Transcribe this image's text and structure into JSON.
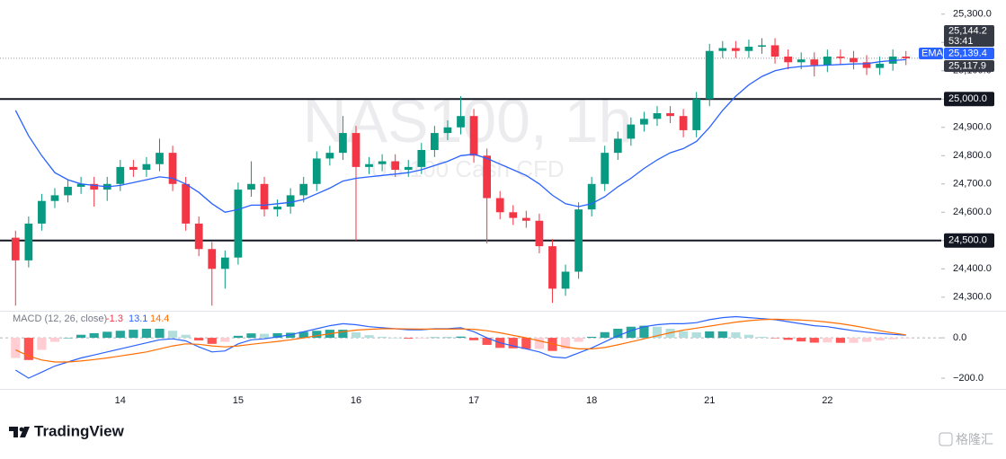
{
  "chart_data": [
    {
      "type": "candlestick",
      "title": "NAS100, 1h",
      "subtitle": "US 100 Cash CFD",
      "categories": [
        null,
        null,
        null,
        null,
        null,
        null,
        null,
        null,
        "14",
        null,
        null,
        null,
        null,
        null,
        null,
        null,
        null,
        "15",
        null,
        null,
        null,
        null,
        null,
        null,
        null,
        null,
        "16",
        null,
        null,
        null,
        null,
        null,
        null,
        null,
        null,
        "17",
        null,
        null,
        null,
        null,
        null,
        null,
        null,
        null,
        "18",
        null,
        null,
        null,
        null,
        null,
        null,
        null,
        null,
        "21",
        null,
        null,
        null,
        null,
        null,
        null,
        null,
        null,
        "22",
        null,
        null,
        null,
        null,
        null,
        null
      ],
      "open": [
        24510,
        24430,
        24560,
        24640,
        24660,
        24690,
        24700,
        24680,
        24700,
        24760,
        24750,
        24770,
        24810,
        24700,
        24560,
        24470,
        24400,
        24440,
        24680,
        24700,
        24610,
        24620,
        24660,
        24700,
        24790,
        24810,
        24880,
        24760,
        24770,
        24780,
        24750,
        24760,
        24820,
        24880,
        24900,
        24940,
        24800,
        24650,
        24600,
        24580,
        24570,
        24480,
        24330,
        24390,
        24610,
        24700,
        24810,
        24860,
        24910,
        24930,
        24950,
        24940,
        24890,
        25000,
        25170,
        25180,
        25170,
        25185,
        25190,
        25150,
        25130,
        25140,
        25120,
        25150,
        25145,
        25130,
        25110,
        25125,
        25150
      ],
      "high": [
        24535,
        24585,
        24665,
        24685,
        24715,
        24725,
        24725,
        24725,
        24785,
        24785,
        24795,
        24860,
        24835,
        24725,
        24585,
        24495,
        24465,
        24705,
        24780,
        24725,
        24645,
        24685,
        24725,
        24815,
        24835,
        24940,
        24905,
        24795,
        24805,
        24805,
        24785,
        24845,
        24905,
        24925,
        25010,
        24965,
        24825,
        24675,
        24625,
        24605,
        24595,
        24505,
        24415,
        24635,
        24725,
        24835,
        24885,
        24935,
        24955,
        24975,
        24975,
        24965,
        25025,
        25195,
        25205,
        25205,
        25210,
        25215,
        25215,
        25175,
        25165,
        25165,
        25175,
        25175,
        25170,
        25155,
        25150,
        25175,
        25170
      ],
      "low": [
        24270,
        24405,
        24535,
        24615,
        24635,
        24665,
        24620,
        24640,
        24675,
        24725,
        24725,
        24745,
        24675,
        24535,
        24445,
        24270,
        24330,
        24415,
        24655,
        24585,
        24585,
        24595,
        24635,
        24675,
        24765,
        24785,
        24500,
        24735,
        24745,
        24725,
        24725,
        24735,
        24795,
        24855,
        24875,
        24775,
        24490,
        24575,
        24555,
        24545,
        24455,
        24280,
        24305,
        24365,
        24585,
        24675,
        24785,
        24835,
        24885,
        24905,
        24915,
        24865,
        24865,
        24975,
        25145,
        25145,
        25145,
        25160,
        25125,
        25105,
        25105,
        25080,
        25095,
        25120,
        25105,
        25085,
        25085,
        25100,
        25120
      ],
      "close": [
        24430,
        24560,
        24640,
        24660,
        24690,
        24700,
        24680,
        24700,
        24760,
        24750,
        24770,
        24810,
        24700,
        24560,
        24470,
        24400,
        24440,
        24680,
        24700,
        24610,
        24620,
        24660,
        24700,
        24790,
        24810,
        24880,
        24760,
        24770,
        24780,
        24750,
        24760,
        24820,
        24880,
        24900,
        24940,
        24800,
        24650,
        24600,
        24580,
        24570,
        24480,
        24330,
        24390,
        24610,
        24700,
        24810,
        24860,
        24910,
        24930,
        24950,
        24940,
        24890,
        25000,
        25170,
        25180,
        25170,
        25185,
        25190,
        25150,
        25130,
        25140,
        25120,
        25150,
        25145,
        25130,
        25110,
        25125,
        25150,
        25144.2
      ],
      "up_color": "#089981",
      "down_color": "#f23645",
      "series": [
        {
          "name": "EMA",
          "color": "#2962ff",
          "values": [
            24960,
            24870,
            24800,
            24740,
            24715,
            24700,
            24695,
            24690,
            24695,
            24705,
            24715,
            24725,
            24720,
            24700,
            24670,
            24630,
            24600,
            24610,
            24625,
            24625,
            24630,
            24635,
            24645,
            24665,
            24685,
            24710,
            24720,
            24725,
            24730,
            24735,
            24740,
            24750,
            24765,
            24780,
            24800,
            24805,
            24790,
            24770,
            24750,
            24730,
            24700,
            24660,
            24630,
            24620,
            24630,
            24655,
            24690,
            24720,
            24755,
            24785,
            24810,
            24825,
            24850,
            24900,
            24960,
            25010,
            25050,
            25080,
            25100,
            25110,
            25115,
            25118,
            25120,
            25122,
            25124,
            25125,
            25132,
            25136,
            25139.4
          ]
        }
      ],
      "ylim": [
        24255,
        25350
      ],
      "yticks": [
        {
          "value": 24300,
          "label": "24,300.0"
        },
        {
          "value": 24400,
          "label": "24,400.0"
        },
        {
          "value": 24500,
          "label": "24,500.0"
        },
        {
          "value": 24600,
          "label": "24,600.0"
        },
        {
          "value": 24700,
          "label": "24,700.0"
        },
        {
          "value": 24800,
          "label": "24,800.0"
        },
        {
          "value": 24900,
          "label": "24,900.0"
        },
        {
          "value": 25000,
          "label": "25,000.0"
        },
        {
          "value": 25100,
          "label": "25,100.0"
        },
        {
          "value": 25200,
          "label": "25,200.0"
        },
        {
          "value": 25300,
          "label": "25,300.0"
        }
      ],
      "hlines": [
        {
          "value": 25000,
          "label": "25,000.0"
        },
        {
          "value": 24500,
          "label": "24,500.0"
        }
      ],
      "price_tags": [
        {
          "value": 25144.2,
          "label": "25,144.2",
          "color": "#363a45"
        },
        {
          "value": 25139.4,
          "label": "25,139.4",
          "color": "#2962ff",
          "name": "EMA"
        },
        {
          "value": 25117.9,
          "label": "25,117.9",
          "color": "#363a45"
        }
      ],
      "countdown": "53:41"
    },
    {
      "type": "macd",
      "title": "MACD (12, 26, close)",
      "series": [
        {
          "name": "MACD",
          "color": "#2962ff",
          "values": [
            -160,
            -200,
            -170,
            -140,
            -120,
            -100,
            -85,
            -70,
            -55,
            -40,
            -25,
            -10,
            -5,
            -15,
            -45,
            -70,
            -65,
            -30,
            -10,
            -5,
            5,
            15,
            30,
            45,
            60,
            70,
            65,
            55,
            50,
            45,
            40,
            40,
            45,
            45,
            50,
            30,
            0,
            -25,
            -40,
            -55,
            -70,
            -95,
            -100,
            -75,
            -50,
            -20,
            10,
            35,
            55,
            65,
            70,
            70,
            75,
            90,
            100,
            105,
            100,
            95,
            90,
            80,
            70,
            60,
            55,
            45,
            35,
            28,
            22,
            17,
            13.1
          ]
        },
        {
          "name": "Signal",
          "color": "#ff6d00",
          "values": [
            -60,
            -90,
            -110,
            -120,
            -120,
            -115,
            -108,
            -100,
            -90,
            -80,
            -70,
            -55,
            -40,
            -30,
            -32,
            -40,
            -45,
            -40,
            -32,
            -25,
            -18,
            -10,
            0,
            10,
            20,
            30,
            38,
            42,
            45,
            45,
            44,
            43,
            43,
            43,
            44,
            42,
            35,
            25,
            12,
            0,
            -15,
            -30,
            -45,
            -55,
            -55,
            -48,
            -35,
            -20,
            -5,
            10,
            25,
            38,
            48,
            58,
            68,
            78,
            85,
            90,
            92,
            90,
            88,
            84,
            78,
            70,
            60,
            48,
            35,
            24,
            14.4
          ]
        },
        {
          "name": "Histogram",
          "color": "#f23645",
          "values": [
            -100,
            -110,
            -60,
            -20,
            0,
            15,
            23,
            30,
            35,
            40,
            45,
            45,
            35,
            15,
            -13,
            -30,
            -20,
            10,
            22,
            20,
            23,
            25,
            30,
            35,
            40,
            40,
            27,
            13,
            5,
            0,
            -4,
            -3,
            2,
            2,
            6,
            -12,
            -35,
            -50,
            -52,
            -55,
            -55,
            -65,
            -55,
            -20,
            5,
            28,
            45,
            55,
            60,
            55,
            45,
            32,
            27,
            32,
            32,
            27,
            15,
            5,
            -2,
            -10,
            -18,
            -24,
            -23,
            -25,
            -25,
            -20,
            -13,
            -7,
            -1.3
          ]
        }
      ],
      "histogram_colors": {
        "up_rising": "#26a69a",
        "up_falling": "#b2dfdb",
        "down_falling": "#ff5252",
        "down_rising": "#ffcdd2"
      },
      "ylim": [
        -240,
        125
      ],
      "yticks": [
        {
          "value": 0,
          "label": "0.0"
        },
        {
          "value": -200,
          "label": "−200.0"
        }
      ]
    }
  ],
  "brand": "TradingView",
  "source_mark": "格隆汇"
}
